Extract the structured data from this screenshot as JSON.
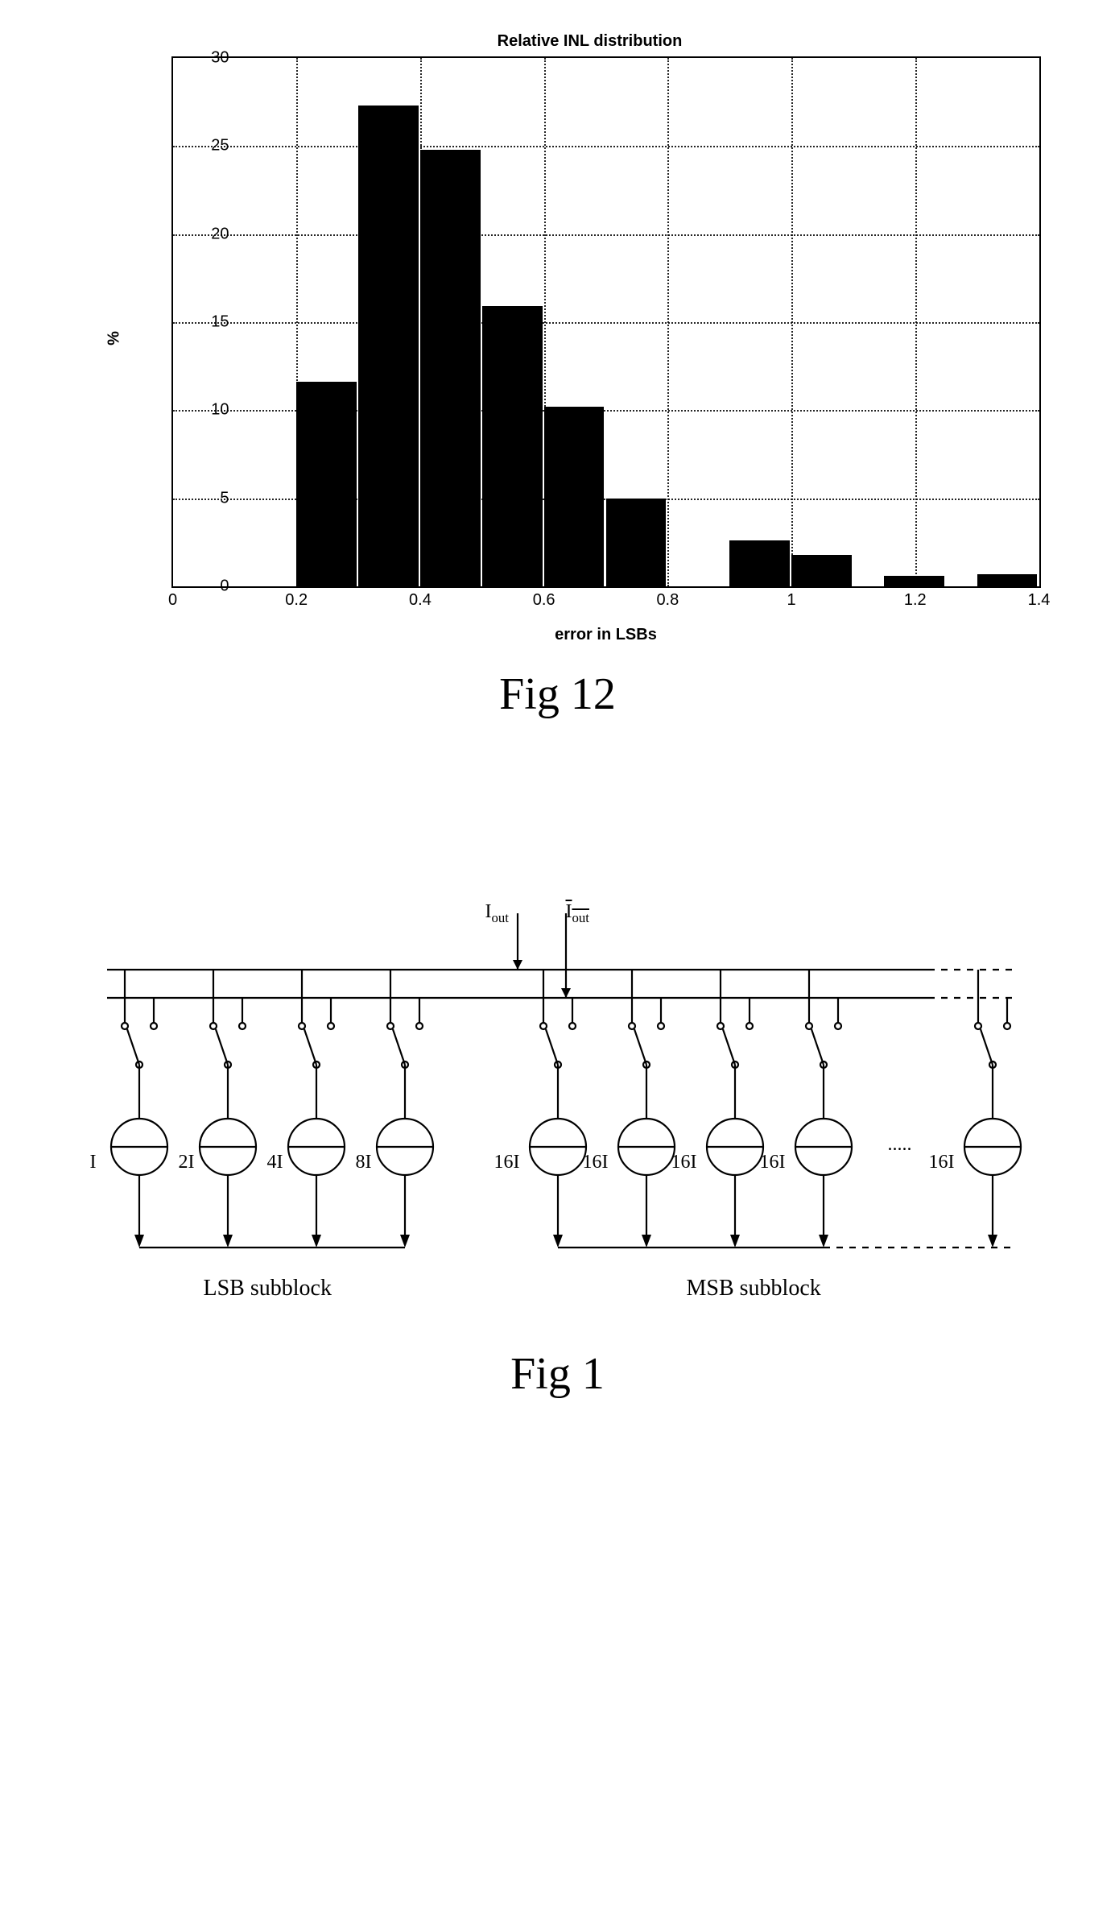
{
  "fig12": {
    "caption": "Fig 12",
    "chart": {
      "type": "bar",
      "title": "Relative INL distribution",
      "title_fontsize": 20,
      "xlabel": "error in LSBs",
      "ylabel": "%",
      "label_fontsize": 20,
      "xlim": [
        0,
        1.4
      ],
      "ylim": [
        0,
        30
      ],
      "xtick_step": 0.2,
      "xtick_labels": [
        "0",
        "0.2",
        "0.4",
        "0.6",
        "0.8",
        "1",
        "1.2",
        "1.4"
      ],
      "ytick_step": 5,
      "ytick_labels": [
        "0",
        "5",
        "10",
        "15",
        "20",
        "25",
        "30"
      ],
      "grid": true,
      "grid_color": "#000000",
      "grid_style": "dotted",
      "bar_color": "#000000",
      "background_color": "#ffffff",
      "border_color": "#000000",
      "bin_width": 0.1,
      "bars": [
        {
          "x_center": 0.25,
          "value": 11.6
        },
        {
          "x_center": 0.35,
          "value": 27.3
        },
        {
          "x_center": 0.45,
          "value": 24.8
        },
        {
          "x_center": 0.55,
          "value": 15.9
        },
        {
          "x_center": 0.65,
          "value": 10.2
        },
        {
          "x_center": 0.75,
          "value": 5.0
        },
        {
          "x_center": 0.85,
          "value": 0.0
        },
        {
          "x_center": 0.95,
          "value": 2.6
        },
        {
          "x_center": 1.05,
          "value": 1.8
        },
        {
          "x_center": 1.15,
          "value": 0.0
        },
        {
          "x_center": 1.2,
          "value": 0.6
        },
        {
          "x_center": 1.3,
          "value": 0.0
        },
        {
          "x_center": 1.35,
          "value": 0.7
        }
      ]
    }
  },
  "fig1": {
    "caption": "Fig 1",
    "diagram": {
      "type": "circuit",
      "output_labels": {
        "left": "I_out",
        "right": "I_out_complement"
      },
      "lsb_label": "LSB subblock",
      "msb_label": "MSB subblock",
      "ellipsis": ".....",
      "line_color": "#000000",
      "circle_radius": 35,
      "switch_radius": 4,
      "lsb_sources": [
        {
          "label": "I"
        },
        {
          "label": "2I"
        },
        {
          "label": "4I"
        },
        {
          "label": "8I"
        }
      ],
      "msb_sources": [
        {
          "label": "16I"
        },
        {
          "label": "16I"
        },
        {
          "label": "16I"
        },
        {
          "label": "16I"
        },
        {
          "label": "16I"
        }
      ]
    }
  }
}
